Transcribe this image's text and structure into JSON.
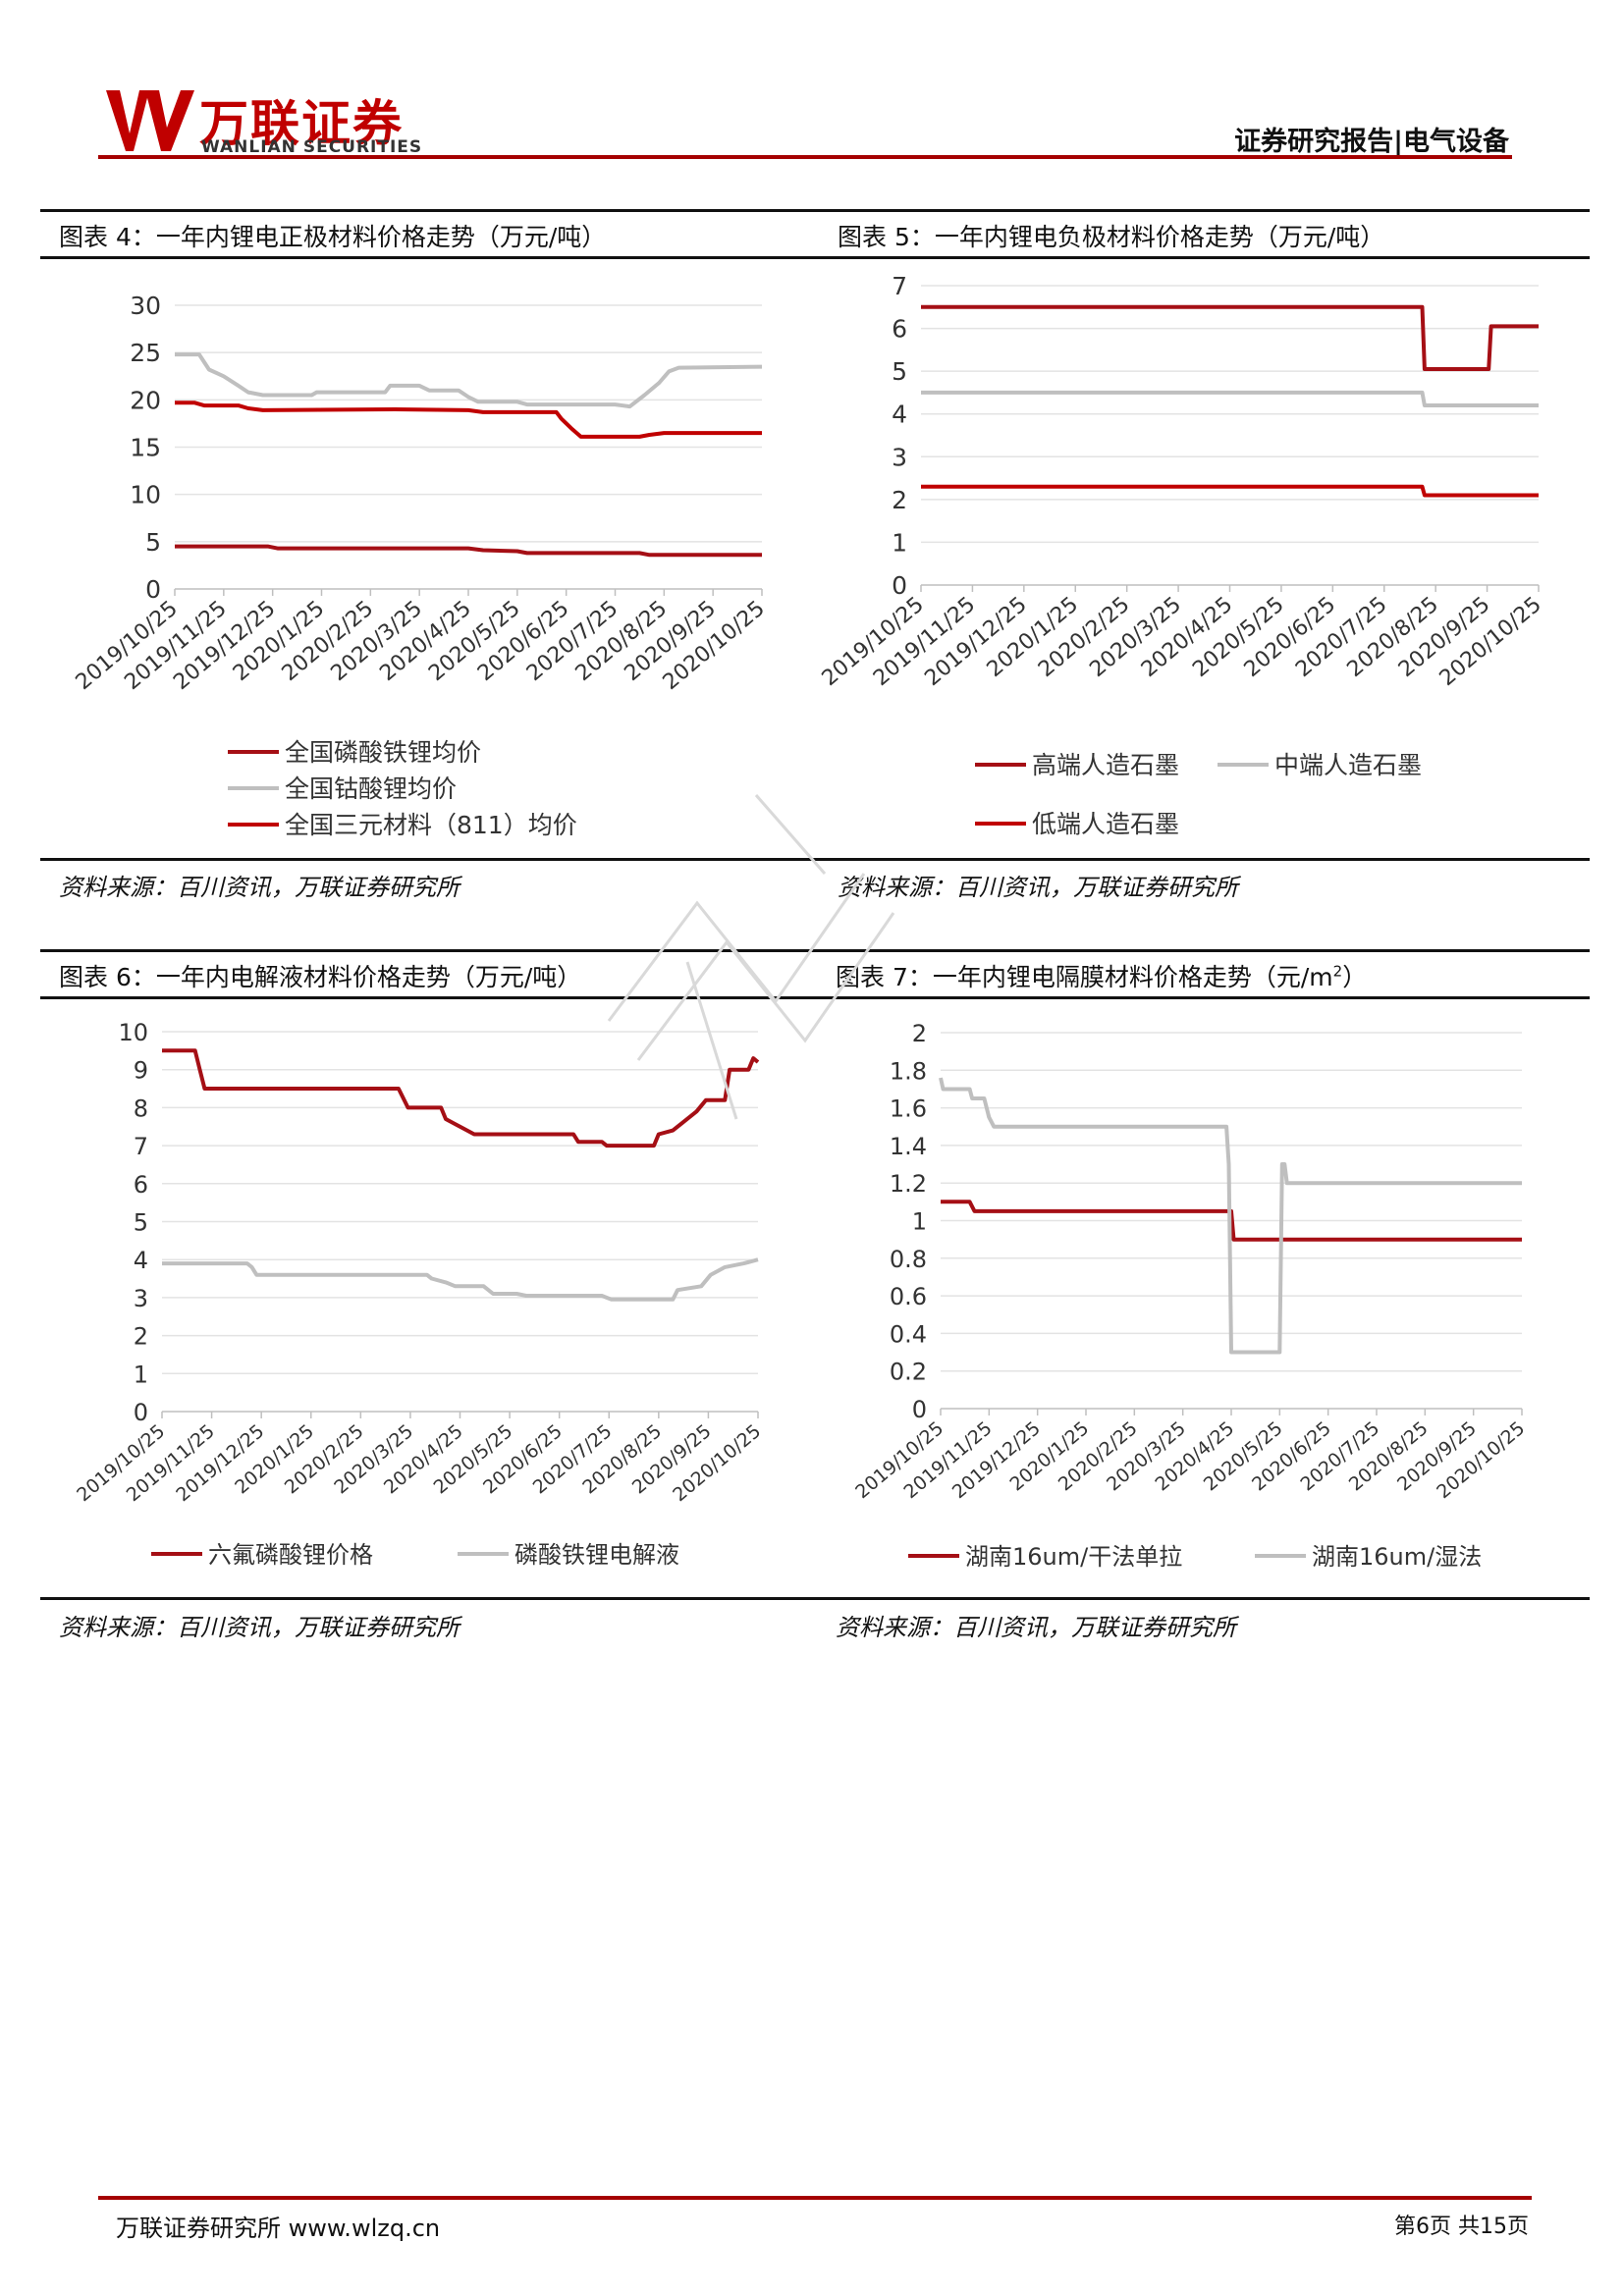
{
  "header": {
    "logo_cn": "万联证券",
    "logo_en": "WANLIAN SECURITIES",
    "report_type": "证券研究报告|电气设备"
  },
  "colors": {
    "dark_red": "#A50F15",
    "red": "#C00000",
    "grey": "#BFBFBF",
    "rule": "#A50000"
  },
  "fig4": {
    "title": "图表 4：一年内锂电正极材料价格走势（万元/吨）",
    "source": "资料来源：百川资讯，万联证券研究所",
    "chart_data": {
      "type": "line",
      "ylim": [
        0,
        30
      ],
      "yticks": [
        "0",
        "5",
        "10",
        "15",
        "20",
        "25",
        "30"
      ],
      "categories": [
        "2019/10/25",
        "2019/11/25",
        "2019/12/25",
        "2020/1/25",
        "2020/2/25",
        "2020/3/25",
        "2020/4/25",
        "2020/5/25",
        "2020/6/25",
        "2020/7/25",
        "2020/8/25",
        "2020/9/25",
        "2020/10/25"
      ],
      "series": [
        {
          "name": "全国磷酸铁锂均价",
          "color": "#A50F15",
          "points": [
            [
              0,
              4.5
            ],
            [
              1.9,
              4.5
            ],
            [
              2.1,
              4.3
            ],
            [
              6,
              4.3
            ],
            [
              6.3,
              4.1
            ],
            [
              7,
              4.0
            ],
            [
              7.2,
              3.8
            ],
            [
              9.5,
              3.8
            ],
            [
              9.7,
              3.6
            ],
            [
              12,
              3.6
            ]
          ]
        },
        {
          "name": "全国钴酸锂均价",
          "color": "#BFBFBF",
          "points": [
            [
              0,
              24.8
            ],
            [
              0.5,
              24.8
            ],
            [
              0.7,
              23.2
            ],
            [
              1,
              22.5
            ],
            [
              1.3,
              21.5
            ],
            [
              1.5,
              20.8
            ],
            [
              1.8,
              20.5
            ],
            [
              2.8,
              20.5
            ],
            [
              2.9,
              20.8
            ],
            [
              4.3,
              20.8
            ],
            [
              4.4,
              21.5
            ],
            [
              5,
              21.5
            ],
            [
              5.2,
              21
            ],
            [
              5.8,
              21
            ],
            [
              6,
              20.3
            ],
            [
              6.2,
              19.8
            ],
            [
              7,
              19.8
            ],
            [
              7.2,
              19.5
            ],
            [
              9,
              19.5
            ],
            [
              9.3,
              19.3
            ],
            [
              9.6,
              20.5
            ],
            [
              9.9,
              21.8
            ],
            [
              10.1,
              23
            ],
            [
              10.3,
              23.4
            ],
            [
              12,
              23.5
            ]
          ]
        },
        {
          "name": "全国三元材料（811）均价",
          "color": "#C00000",
          "points": [
            [
              0,
              19.7
            ],
            [
              0.4,
              19.7
            ],
            [
              0.6,
              19.4
            ],
            [
              1.3,
              19.4
            ],
            [
              1.5,
              19.1
            ],
            [
              1.8,
              18.9
            ],
            [
              4.5,
              19
            ],
            [
              6,
              18.9
            ],
            [
              6.3,
              18.7
            ],
            [
              7.8,
              18.7
            ],
            [
              7.9,
              18
            ],
            [
              8.1,
              17
            ],
            [
              8.3,
              16.1
            ],
            [
              9.5,
              16.1
            ],
            [
              9.7,
              16.3
            ],
            [
              10,
              16.5
            ],
            [
              12,
              16.5
            ]
          ]
        }
      ]
    }
  },
  "fig5": {
    "title": "图表 5：一年内锂电负极材料价格走势（万元/吨）",
    "source": "资料来源：百川资讯，万联证券研究所",
    "chart_data": {
      "type": "line",
      "ylim": [
        0,
        7
      ],
      "yticks": [
        "0",
        "1",
        "2",
        "3",
        "4",
        "5",
        "6",
        "7"
      ],
      "categories": [
        "2019/10/25",
        "2019/11/25",
        "2019/12/25",
        "2020/1/25",
        "2020/2/25",
        "2020/3/25",
        "2020/4/25",
        "2020/5/25",
        "2020/6/25",
        "2020/7/25",
        "2020/8/25",
        "2020/9/25",
        "2020/10/25"
      ],
      "series": [
        {
          "name": "高端人造石墨",
          "color": "#A50F15",
          "points": [
            [
              0,
              6.5
            ],
            [
              10.55,
              6.5
            ],
            [
              10.6,
              5.05
            ],
            [
              11.95,
              5.05
            ],
            [
              12,
              6.05
            ],
            [
              13,
              6.05
            ]
          ]
        },
        {
          "name": "中端人造石墨",
          "color": "#BFBFBF",
          "points": [
            [
              0,
              4.5
            ],
            [
              10.55,
              4.5
            ],
            [
              10.6,
              4.2
            ],
            [
              13,
              4.2
            ]
          ]
        },
        {
          "name": "低端人造石墨",
          "color": "#C00000",
          "points": [
            [
              0,
              2.3
            ],
            [
              10.55,
              2.3
            ],
            [
              10.6,
              2.1
            ],
            [
              13,
              2.1
            ]
          ]
        }
      ]
    }
  },
  "fig6": {
    "title": "图表 6：一年内电解液材料价格走势（万元/吨）",
    "source": "资料来源：百川资讯，万联证券研究所",
    "chart_data": {
      "type": "line",
      "ylim": [
        0,
        10
      ],
      "yticks": [
        "0",
        "1",
        "2",
        "3",
        "4",
        "5",
        "6",
        "7",
        "8",
        "9",
        "10"
      ],
      "categories": [
        "2019/10/25",
        "2019/11/25",
        "2019/12/25",
        "2020/1/25",
        "2020/2/25",
        "2020/3/25",
        "2020/4/25",
        "2020/5/25",
        "2020/6/25",
        "2020/7/25",
        "2020/8/25",
        "2020/9/25",
        "2020/10/25"
      ],
      "series": [
        {
          "name": "六氟磷酸锂价格",
          "color": "#A50F15",
          "points": [
            [
              0,
              9.5
            ],
            [
              0.7,
              9.5
            ],
            [
              0.8,
              9
            ],
            [
              0.9,
              8.5
            ],
            [
              5,
              8.5
            ],
            [
              5.2,
              8
            ],
            [
              5.9,
              8
            ],
            [
              6,
              7.7
            ],
            [
              6.3,
              7.5
            ],
            [
              6.6,
              7.3
            ],
            [
              8.7,
              7.3
            ],
            [
              8.8,
              7.1
            ],
            [
              9.3,
              7.1
            ],
            [
              9.4,
              7.0
            ],
            [
              10.4,
              7.0
            ],
            [
              10.5,
              7.3
            ],
            [
              10.8,
              7.4
            ],
            [
              11,
              7.6
            ],
            [
              11.3,
              7.9
            ],
            [
              11.5,
              8.2
            ],
            [
              11.9,
              8.2
            ],
            [
              12,
              9.0
            ],
            [
              12.4,
              9.0
            ],
            [
              12.5,
              9.3
            ],
            [
              12.6,
              9.2
            ]
          ]
        },
        {
          "name": "磷酸铁锂电解液",
          "color": "#BFBFBF",
          "points": [
            [
              0,
              3.9
            ],
            [
              1.8,
              3.9
            ],
            [
              1.9,
              3.8
            ],
            [
              2,
              3.6
            ],
            [
              5.6,
              3.6
            ],
            [
              5.7,
              3.5
            ],
            [
              6,
              3.4
            ],
            [
              6.2,
              3.3
            ],
            [
              6.8,
              3.3
            ],
            [
              7,
              3.1
            ],
            [
              7.5,
              3.1
            ],
            [
              7.7,
              3.05
            ],
            [
              9.3,
              3.05
            ],
            [
              9.5,
              2.95
            ],
            [
              10.8,
              2.95
            ],
            [
              10.9,
              3.2
            ],
            [
              11.4,
              3.3
            ],
            [
              11.6,
              3.6
            ],
            [
              11.9,
              3.8
            ],
            [
              12.3,
              3.9
            ],
            [
              12.6,
              4.0
            ]
          ]
        }
      ]
    }
  },
  "fig7": {
    "title_main": "图表 7：一年内锂电隔膜材料价格走势（元/m",
    "title_sup": "2",
    "title_close": "）",
    "source": "资料来源：百川资讯，万联证券研究所",
    "chart_data": {
      "type": "line",
      "ylim": [
        0,
        2
      ],
      "yticks": [
        "0",
        "0.2",
        "0.4",
        "0.6",
        "0.8",
        "1",
        "1.2",
        "1.4",
        "1.6",
        "1.8",
        "2"
      ],
      "categories": [
        "2019/10/25",
        "2019/11/25",
        "2019/12/25",
        "2020/1/25",
        "2020/2/25",
        "2020/3/25",
        "2020/4/25",
        "2020/5/25",
        "2020/6/25",
        "2020/7/25",
        "2020/8/25",
        "2020/9/25",
        "2020/10/25"
      ],
      "series": [
        {
          "name": "湖南16um/干法单拉",
          "color": "#A50F15",
          "points": [
            [
              0,
              1.1
            ],
            [
              0.6,
              1.1
            ],
            [
              0.7,
              1.05
            ],
            [
              6,
              1.05
            ],
            [
              6.05,
              0.9
            ],
            [
              12,
              0.9
            ]
          ]
        },
        {
          "name": "湖南16um/湿法",
          "color": "#BFBFBF",
          "points": [
            [
              0,
              1.76
            ],
            [
              0.05,
              1.7
            ],
            [
              0.6,
              1.7
            ],
            [
              0.65,
              1.65
            ],
            [
              0.9,
              1.65
            ],
            [
              1.0,
              1.55
            ],
            [
              1.1,
              1.5
            ],
            [
              5.9,
              1.5
            ],
            [
              5.95,
              1.3
            ],
            [
              6.0,
              0.3
            ],
            [
              7.0,
              0.3
            ],
            [
              7.05,
              1.3
            ],
            [
              7.1,
              1.3
            ],
            [
              7.15,
              1.2
            ],
            [
              12,
              1.2
            ]
          ]
        }
      ]
    }
  },
  "footer": {
    "left": "万联证券研究所 www.wlzq.cn",
    "right": "第6页 共15页"
  }
}
